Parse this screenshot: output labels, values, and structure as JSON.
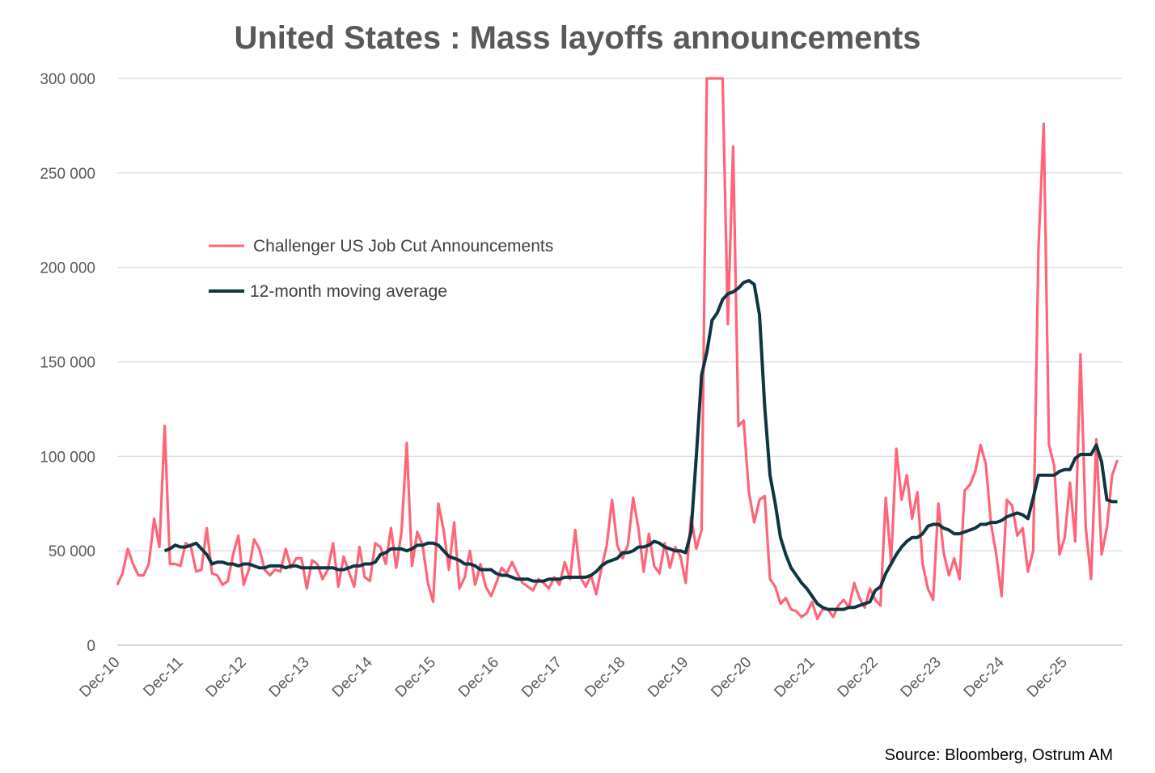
{
  "chart_data": {
    "type": "line",
    "title": "United States : Mass layoffs announcements",
    "source": "Source: Bloomberg, Ostrum AM",
    "xlabel": "",
    "ylabel": "",
    "ylim": [
      0,
      300000
    ],
    "yticks": [
      0,
      50000,
      100000,
      150000,
      200000,
      250000,
      300000
    ],
    "ytick_labels": [
      "0",
      "50 000",
      "100 000",
      "150 000",
      "200 000",
      "250 000",
      "300 000"
    ],
    "xtick_labels": [
      "Dec-10",
      "Dec-11",
      "Dec-12",
      "Dec-13",
      "Dec-14",
      "Dec-15",
      "Dec-16",
      "Dec-17",
      "Dec-18",
      "Dec-19",
      "Dec-20",
      "Dec-21",
      "Dec-22",
      "Dec-23",
      "Dec-24",
      "Dec-25"
    ],
    "x_start": "Dec-10",
    "grid": true,
    "legend_position": "left",
    "colors": {
      "challenger": "#ff6478",
      "moving_average": "#0d3640"
    },
    "series": [
      {
        "name": "Challenger US Job Cut Announcements",
        "values": [
          32000,
          38000,
          51000,
          43000,
          37000,
          37000,
          43000,
          67000,
          52000,
          116000,
          43000,
          43000,
          42000,
          54000,
          52000,
          39000,
          40000,
          62000,
          38000,
          37000,
          32000,
          34000,
          48000,
          58000,
          32000,
          40000,
          56000,
          51000,
          40000,
          37000,
          40000,
          39000,
          51000,
          41000,
          46000,
          46000,
          30000,
          45000,
          43000,
          35000,
          40000,
          54000,
          31000,
          47000,
          39000,
          31000,
          52000,
          36000,
          34000,
          54000,
          52000,
          43000,
          62000,
          41000,
          60000,
          107000,
          42000,
          60000,
          53000,
          33000,
          23000,
          75000,
          61000,
          40000,
          65000,
          30000,
          36000,
          50000,
          32000,
          43000,
          31000,
          26000,
          33000,
          41000,
          38000,
          44000,
          38000,
          33000,
          31000,
          29000,
          35000,
          33000,
          30000,
          36000,
          32000,
          44000,
          35000,
          61000,
          36000,
          31000,
          37000,
          27000,
          41000,
          53000,
          77000,
          53000,
          46000,
          53000,
          78000,
          62000,
          39000,
          59000,
          42000,
          38000,
          54000,
          41000,
          52000,
          47000,
          33000,
          68000,
          51000,
          61000,
          300000,
          300000,
          300000,
          300000,
          170000,
          264000,
          116000,
          119000,
          81000,
          65000,
          77000,
          79000,
          35000,
          31000,
          22000,
          25000,
          19000,
          18000,
          15000,
          17000,
          23000,
          14000,
          19000,
          19000,
          15000,
          21000,
          24000,
          20000,
          33000,
          25000,
          20000,
          30000,
          24000,
          21000,
          78000,
          44000,
          104000,
          77000,
          90000,
          67000,
          81000,
          43000,
          30000,
          24000,
          75000,
          49000,
          37000,
          46000,
          35000,
          82000,
          85000,
          92000,
          106000,
          96000,
          64000,
          48000,
          26000,
          77000,
          74000,
          58000,
          62000,
          39000,
          50000,
          210000,
          276000,
          106000,
          95000,
          48000,
          57000,
          86000,
          55000,
          154000,
          62000,
          35000,
          109000,
          48000,
          62000,
          90000,
          98000
        ]
      },
      {
        "name": "12-month moving average",
        "start_index": 9,
        "values": [
          50000,
          51000,
          53000,
          52000,
          52000,
          53000,
          54000,
          51000,
          48000,
          43000,
          44000,
          44000,
          43000,
          43000,
          42000,
          43000,
          43000,
          42000,
          41000,
          41000,
          42000,
          42000,
          42000,
          41000,
          42000,
          42000,
          41000,
          41000,
          41000,
          41000,
          41000,
          41000,
          41000,
          40000,
          40000,
          41000,
          42000,
          42000,
          43000,
          43000,
          44000,
          48000,
          49000,
          51000,
          51000,
          51000,
          50000,
          51000,
          53000,
          53000,
          54000,
          54000,
          53000,
          50000,
          47000,
          46000,
          45000,
          43000,
          43000,
          42000,
          40000,
          40000,
          40000,
          38000,
          37000,
          37000,
          36000,
          35000,
          35000,
          35000,
          34000,
          34000,
          34000,
          35000,
          35000,
          35000,
          36000,
          36000,
          36000,
          36000,
          36000,
          37000,
          39000,
          42000,
          44000,
          45000,
          46000,
          49000,
          49000,
          50000,
          52000,
          52000,
          53000,
          55000,
          54000,
          52000,
          51000,
          50000,
          50000,
          49000,
          60000,
          100000,
          143000,
          155000,
          172000,
          176000,
          183000,
          186000,
          187000,
          189000,
          192000,
          193000,
          191000,
          175000,
          126000,
          90000,
          75000,
          57000,
          48000,
          41000,
          37000,
          33000,
          30000,
          26000,
          22000,
          20000,
          19000,
          19000,
          19000,
          19000,
          20000,
          20000,
          21000,
          22000,
          23000,
          29000,
          31000,
          38000,
          43000,
          48000,
          52000,
          55000,
          57000,
          57000,
          59000,
          63000,
          64000,
          64000,
          62000,
          61000,
          59000,
          59000,
          60000,
          61000,
          62000,
          64000,
          64000,
          65000,
          65000,
          66000,
          68000,
          69000,
          70000,
          69000,
          67000,
          78000,
          90000,
          90000,
          90000,
          90000,
          92000,
          93000,
          93000,
          99000,
          101000,
          101000,
          101000,
          106000,
          97000,
          77000,
          76000,
          76000
        ]
      }
    ]
  }
}
